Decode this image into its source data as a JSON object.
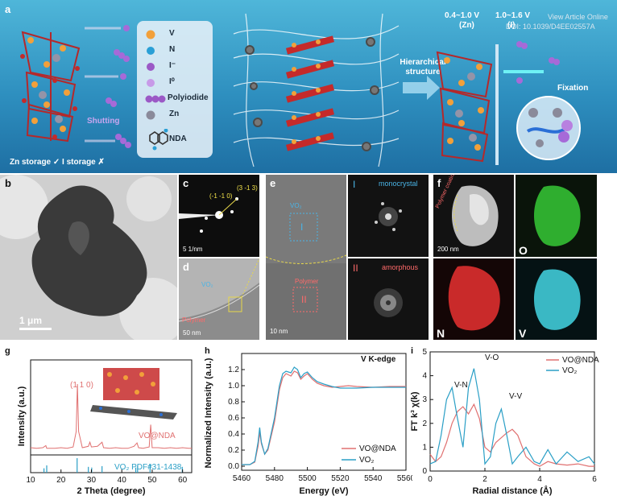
{
  "figure": {
    "watermark_line1": "View Article Online",
    "watermark_line2": "DOI: 10.1039/D4EE02557A"
  },
  "panel_a": {
    "letter": "a",
    "legend": [
      {
        "symbol": "v-atom",
        "label": "V",
        "color": "#f2a03a"
      },
      {
        "symbol": "n-atom",
        "label": "N",
        "color": "#2a9fd6"
      },
      {
        "symbol": "iodide-ion",
        "label": "I⁻",
        "color": "#9b59c6"
      },
      {
        "symbol": "iodine-atom",
        "label": "I⁰",
        "color": "#b07ad8"
      },
      {
        "symbol": "polyiodide",
        "label": "Polyiodide",
        "color": "#9b59c6"
      },
      {
        "symbol": "zn-atom",
        "label": "Zn",
        "color": "#8a8a9a"
      },
      {
        "symbol": "nda-molecule",
        "label": "NDA",
        "color": "#3a3a3a"
      }
    ],
    "shutting_label": "Shutting",
    "storage_label": "Zn storage ✓  I storage ✗",
    "hierarchical_label": "Hierarchical structure",
    "voltage_zn": "0.4~1.0 V",
    "voltage_zn_sub": "(Zn)",
    "voltage_i": "1.0~1.6 V",
    "voltage_i_sub": "(I)",
    "fixation_label": "Fixation"
  },
  "panel_b": {
    "letter": "b",
    "scale": "1 μm"
  },
  "panel_c": {
    "letter": "c",
    "spot1": "(-1 -1 0)",
    "spot2": "(3 -1 3)",
    "scale": "5 1/nm"
  },
  "panel_d": {
    "letter": "d",
    "vo2": "VO₂",
    "polymer": "Polymer",
    "scale": "50 nm"
  },
  "panel_e": {
    "letter": "e",
    "vo2": "VO₂",
    "region1": "I",
    "polymer": "Polymer",
    "region2": "II",
    "scale": "10 nm",
    "mono_label": "monocrystal",
    "amorph_label": "amorphous",
    "fft1": "I",
    "fft2": "II"
  },
  "panel_f": {
    "letter": "f",
    "coating": "Polymer coating",
    "scale": "200 nm",
    "o": "O",
    "n": "N",
    "v": "V"
  },
  "panel_g": {
    "letter": "g",
    "peak_label": "(1 1 0)",
    "sample_label": "VO@NDA",
    "ref_label": "VO₂ PDF#31-1438",
    "xlabel": "2 Theta (degree)",
    "ylabel": "Intensity (a.u.)",
    "xticks": [
      "10",
      "20",
      "30",
      "40",
      "50",
      "60"
    ]
  },
  "panel_h": {
    "letter": "h",
    "edge_label": "V K-edge",
    "xlabel": "Energy (eV)",
    "ylabel": "Normalized Intensity (a.u.)",
    "xticks": [
      "5460",
      "5480",
      "5500",
      "5520",
      "5540",
      "5560"
    ],
    "yticks": [
      "0.0",
      "0.2",
      "0.4",
      "0.6",
      "0.8",
      "1.0",
      "1.2"
    ],
    "legend": [
      "VO@NDA",
      "VO₂"
    ]
  },
  "panel_i": {
    "letter": "i",
    "xlabel": "Radial distance (Å)",
    "ylabel": "FT k³ χ(k)",
    "xticks": [
      "0",
      "2",
      "4",
      "6"
    ],
    "yticks": [
      "0",
      "1",
      "2",
      "3",
      "4",
      "5"
    ],
    "legend": [
      "VO@NDA",
      "VO₂"
    ],
    "ann_vo": "V-O",
    "ann_vn": "V-N",
    "ann_vv": "V-V"
  },
  "chart_data": [
    {
      "type": "line",
      "xlabel": "2 Theta (degree)",
      "ylabel": "Intensity (a.u.)",
      "xlim": [
        10,
        63
      ],
      "series": [
        {
          "name": "VO@NDA",
          "color": "#e07070",
          "x": [
            10,
            12,
            14,
            15,
            15.3,
            16,
            18,
            20,
            22,
            24,
            25,
            25.4,
            25.8,
            27,
            29,
            29.5,
            30,
            32,
            33.5,
            34,
            36,
            38,
            40,
            42,
            44,
            45,
            45.5,
            47,
            49,
            49.5,
            50,
            52,
            54,
            56,
            58,
            60,
            62,
            63
          ],
          "y": [
            0.06,
            0.05,
            0.06,
            0.09,
            0.05,
            0.05,
            0.05,
            0.06,
            0.05,
            0.07,
            0.3,
            1.0,
            0.3,
            0.06,
            0.08,
            0.14,
            0.07,
            0.08,
            0.14,
            0.06,
            0.05,
            0.06,
            0.05,
            0.05,
            0.08,
            0.13,
            0.06,
            0.05,
            0.07,
            0.4,
            0.06,
            0.06,
            0.05,
            0.06,
            0.05,
            0.06,
            0.05,
            0.05
          ]
        }
      ],
      "reference": {
        "name": "VO₂ PDF#31-1438",
        "positions": [
          14.4,
          15.3,
          25.3,
          29.0,
          30.1,
          33.5,
          44.6,
          45.2,
          49.3,
          59.9
        ],
        "heights": [
          0.3,
          0.5,
          1.0,
          0.4,
          0.35,
          0.45,
          0.35,
          0.5,
          0.6,
          0.4
        ]
      }
    },
    {
      "type": "line",
      "xlabel": "Energy (eV)",
      "ylabel": "Normalized Intensity (a.u.)",
      "xlim": [
        5460,
        5560
      ],
      "ylim": [
        -0.05,
        1.4
      ],
      "series": [
        {
          "name": "VO@NDA",
          "color": "#e07070",
          "x": [
            5460,
            5465,
            5468,
            5470,
            5471,
            5472,
            5474,
            5476,
            5480,
            5483,
            5485,
            5487,
            5490,
            5492,
            5494,
            5496,
            5498,
            5500,
            5503,
            5506,
            5510,
            5515,
            5520,
            5525,
            5530,
            5540,
            5550,
            5560
          ],
          "y": [
            0.02,
            0.02,
            0.05,
            0.25,
            0.42,
            0.28,
            0.15,
            0.2,
            0.55,
            0.95,
            1.1,
            1.15,
            1.12,
            1.18,
            1.16,
            1.08,
            1.12,
            1.15,
            1.08,
            1.03,
            1.0,
            0.98,
            0.99,
            1.0,
            0.99,
            0.98,
            0.99,
            0.99
          ]
        },
        {
          "name": "VO₂",
          "color": "#2a9fc6",
          "x": [
            5460,
            5465,
            5468,
            5470,
            5471,
            5472,
            5474,
            5476,
            5480,
            5483,
            5485,
            5487,
            5490,
            5492,
            5494,
            5496,
            5498,
            5500,
            5503,
            5506,
            5510,
            5515,
            5520,
            5525,
            5530,
            5540,
            5550,
            5560
          ],
          "y": [
            0.02,
            0.02,
            0.06,
            0.3,
            0.48,
            0.3,
            0.15,
            0.22,
            0.6,
            1.0,
            1.15,
            1.18,
            1.16,
            1.23,
            1.2,
            1.1,
            1.15,
            1.17,
            1.1,
            1.05,
            1.02,
            0.99,
            0.97,
            0.97,
            0.97,
            0.98,
            0.98,
            0.98
          ]
        }
      ]
    },
    {
      "type": "line",
      "xlabel": "Radial distance (Å)",
      "ylabel": "FT k³ χ(k)",
      "xlim": [
        0,
        6
      ],
      "ylim": [
        0,
        5
      ],
      "series": [
        {
          "name": "VO@NDA",
          "color": "#e07070",
          "x": [
            0,
            0.2,
            0.4,
            0.6,
            0.8,
            1.0,
            1.2,
            1.4,
            1.6,
            1.8,
            2.0,
            2.2,
            2.4,
            2.6,
            2.8,
            3.0,
            3.2,
            3.5,
            3.8,
            4.0,
            4.3,
            4.6,
            5.0,
            5.4,
            5.8,
            6.0
          ],
          "y": [
            0.7,
            0.4,
            0.6,
            1.2,
            2.0,
            2.5,
            2.7,
            2.4,
            2.8,
            2.2,
            1.0,
            0.8,
            1.2,
            1.4,
            1.6,
            1.75,
            1.5,
            0.6,
            0.3,
            0.2,
            0.4,
            0.3,
            0.25,
            0.3,
            0.2,
            0.2
          ]
        },
        {
          "name": "VO₂",
          "color": "#2a9fc6",
          "x": [
            0,
            0.2,
            0.4,
            0.6,
            0.8,
            1.0,
            1.2,
            1.4,
            1.6,
            1.8,
            2.0,
            2.2,
            2.4,
            2.6,
            2.8,
            3.0,
            3.2,
            3.5,
            3.8,
            4.0,
            4.3,
            4.6,
            5.0,
            5.4,
            5.8,
            6.0
          ],
          "y": [
            0.3,
            0.4,
            1.5,
            3.0,
            3.5,
            2.2,
            1.0,
            3.5,
            4.3,
            3.0,
            0.3,
            0.6,
            2.0,
            2.6,
            1.5,
            0.3,
            0.6,
            1.0,
            0.4,
            0.3,
            0.9,
            0.3,
            0.8,
            0.4,
            0.6,
            0.3
          ]
        }
      ]
    }
  ]
}
